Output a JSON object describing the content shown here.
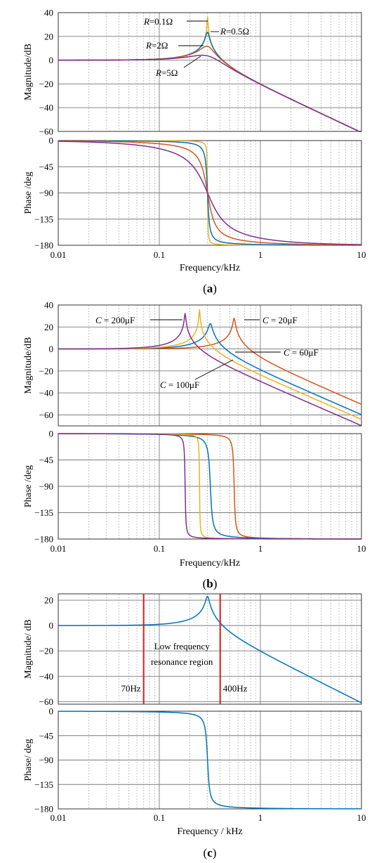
{
  "colors": {
    "blue": "#0072BD",
    "orange": "#D95319",
    "yellow": "#EDB120",
    "purple": "#7E2F8E",
    "red": "#E01818"
  },
  "x_tick_labels": [
    "0.01",
    "0.1",
    "1",
    "10"
  ],
  "chart_data": [
    {
      "type": "line",
      "panel": "a",
      "caption": "(a)",
      "xlabel": "Frequency/kHz",
      "x_scale": "log",
      "xlim": [
        0.01,
        10
      ],
      "x_ticks": [
        0.01,
        0.1,
        1,
        10
      ],
      "f0": 0.3,
      "grid": true,
      "magnitude": {
        "ylabel": "Magnitude/dB",
        "ylim": [
          -60,
          40
        ],
        "y_ticks": [
          -60,
          -40,
          -20,
          0,
          20,
          40
        ],
        "y_tick_labels": [
          "−60",
          "−40",
          "−20",
          "0",
          "20",
          "40"
        ]
      },
      "phase": {
        "ylabel": "Phase /deg",
        "ylim": [
          -180,
          0
        ],
        "y_ticks": [
          -180,
          -135,
          -90,
          -45,
          0
        ],
        "y_tick_labels": [
          "−180",
          "−135",
          "−90",
          "−45",
          "0"
        ]
      },
      "series": [
        {
          "label": "R=0.1Ω",
          "zeta": 0.007,
          "peak_db": 37,
          "color": "yellow"
        },
        {
          "label": "R=0.5Ω",
          "zeta": 0.033,
          "peak_db": 24,
          "color": "blue"
        },
        {
          "label": "R=2Ω",
          "zeta": 0.13,
          "peak_db": 12,
          "color": "orange"
        },
        {
          "label": "R=5Ω",
          "zeta": 0.33,
          "peak_db": 4,
          "color": "purple"
        }
      ],
      "annotations": [
        {
          "var": "R",
          "rest": "=0.1Ω",
          "series": 0
        },
        {
          "var": "R",
          "rest": "=0.5Ω",
          "series": 1
        },
        {
          "var": "R",
          "rest": "=2Ω",
          "series": 2
        },
        {
          "var": "R",
          "rest": "=5Ω",
          "series": 3
        }
      ]
    },
    {
      "type": "line",
      "panel": "b",
      "caption": "(b)",
      "xlabel": "Frequency/kHz",
      "x_scale": "log",
      "xlim": [
        0.01,
        10
      ],
      "x_ticks": [
        0.01,
        0.1,
        1,
        10
      ],
      "grid": true,
      "magnitude": {
        "ylabel": "Magnitude/dB",
        "ylim": [
          -70,
          40
        ],
        "y_ticks": [
          -60,
          -40,
          -20,
          0,
          20,
          40
        ],
        "y_tick_labels": [
          "−60",
          "−40",
          "−20",
          "0",
          "20",
          "40"
        ]
      },
      "phase": {
        "ylabel": "Phase /deg",
        "ylim": [
          -180,
          0
        ],
        "y_ticks": [
          -180,
          -135,
          -90,
          -45,
          0
        ],
        "y_tick_labels": [
          "−180",
          "−135",
          "−90",
          "−45",
          "0"
        ]
      },
      "series": [
        {
          "label": "C = 20μF",
          "f0": 0.55,
          "zeta": 0.02,
          "peak_db": 28,
          "color": "orange"
        },
        {
          "label": "C = 60μF",
          "f0": 0.32,
          "zeta": 0.035,
          "peak_db": 23,
          "color": "blue"
        },
        {
          "label": "C = 100μF",
          "f0": 0.25,
          "zeta": 0.008,
          "peak_db": 35,
          "color": "yellow"
        },
        {
          "label": "C = 200μF",
          "f0": 0.18,
          "zeta": 0.012,
          "peak_db": 32,
          "color": "purple"
        }
      ],
      "annotations": [
        {
          "var": "C",
          "rest": " = 200μF",
          "series": 3
        },
        {
          "var": "C",
          "rest": " = 20μF",
          "series": 0
        },
        {
          "var": "C",
          "rest": " = 60μF",
          "series": 1
        },
        {
          "var": "C",
          "rest": " = 100μF",
          "series": 2
        }
      ]
    },
    {
      "type": "line",
      "panel": "c",
      "caption": "(c)",
      "xlabel": "Frequency / kHz",
      "x_scale": "log",
      "xlim": [
        0.01,
        10
      ],
      "x_ticks": [
        0.01,
        0.1,
        1,
        10
      ],
      "f0": 0.3,
      "grid": true,
      "magnitude": {
        "ylabel": "Magnitude/ dB",
        "ylim": [
          -62,
          25
        ],
        "y_ticks": [
          -60,
          -40,
          -20,
          0,
          20
        ],
        "y_tick_labels": [
          "−60",
          "−40",
          "−20",
          "0",
          "20"
        ]
      },
      "phase": {
        "ylabel": "Phase/ deg",
        "ylim": [
          -180,
          0
        ],
        "y_ticks": [
          -180,
          -135,
          -90,
          -45,
          0
        ],
        "y_tick_labels": [
          "−180",
          "−135",
          "−90",
          "−45",
          "0"
        ]
      },
      "series": [
        {
          "zeta": 0.035,
          "peak_db": 23,
          "color": "blue"
        }
      ],
      "vlines": [
        {
          "x": 0.07,
          "label": "70Hz",
          "color": "red"
        },
        {
          "x": 0.4,
          "label": "400Hz",
          "color": "red"
        }
      ],
      "region_label": [
        "Low frequency",
        "resonance region"
      ]
    }
  ]
}
